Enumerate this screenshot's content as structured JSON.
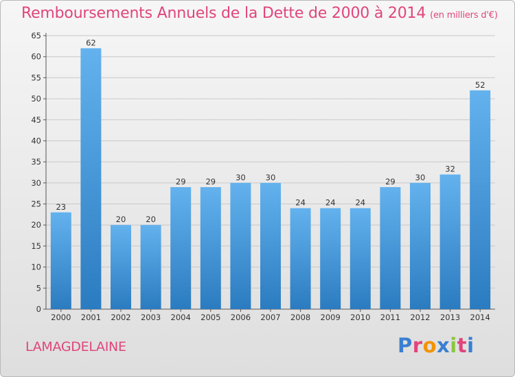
{
  "header": {
    "title": "Remboursements Annuels de la Dette de 2000 à 2014",
    "unit": "(en milliers d'€)"
  },
  "footer": {
    "commune": "LAMAGDELAINE",
    "logo_text": "Proxiti",
    "logo_letters": [
      "P",
      "r",
      "o",
      "x",
      "i",
      "t",
      "i"
    ],
    "logo_colors": [
      "#3a7fd0",
      "#e0457b",
      "#f39200",
      "#3a7fd0",
      "#8cc63f",
      "#e0457b",
      "#3a7fd0"
    ]
  },
  "colors": {
    "title": "#e0457b",
    "bar_top": "#63b2ee",
    "bar_bottom": "#2b7bc0",
    "grid": "#c8c8c8"
  },
  "chart_data": {
    "type": "bar",
    "title": "Remboursements Annuels de la Dette de 2000 à 2014",
    "subtitle": "(en milliers d'€)",
    "categories": [
      "2000",
      "2001",
      "2002",
      "2003",
      "2004",
      "2005",
      "2006",
      "2007",
      "2008",
      "2009",
      "2010",
      "2011",
      "2012",
      "2013",
      "2014"
    ],
    "values": [
      23,
      62,
      20,
      20,
      29,
      29,
      30,
      30,
      24,
      24,
      24,
      29,
      30,
      32,
      52
    ],
    "ylim": [
      0,
      65
    ],
    "yticks": [
      0,
      5,
      10,
      15,
      20,
      25,
      30,
      35,
      40,
      45,
      50,
      55,
      60,
      65
    ],
    "grid": true,
    "data_labels": true
  }
}
